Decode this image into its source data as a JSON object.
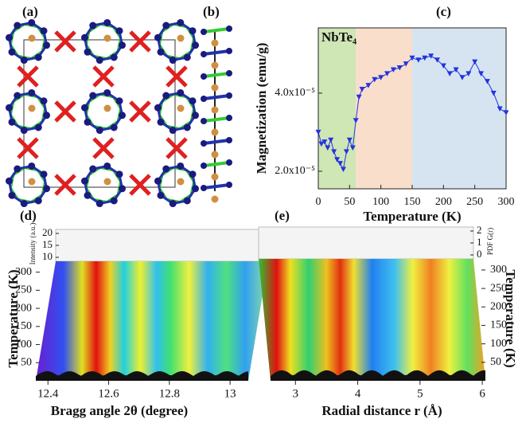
{
  "chart_data": [
    {
      "type": "structure",
      "label": "(a)"
    },
    {
      "type": "structure",
      "label": "(b)"
    },
    {
      "type": "line",
      "label": "(c)",
      "annotation": "NbTe₄",
      "xlabel": "Temperature (K)",
      "ylabel": "Magnetization (emu/g)",
      "xlim": [
        0,
        300
      ],
      "xticks": [
        0,
        50,
        100,
        150,
        200,
        250,
        300
      ],
      "ylim": [
        1.55e-05,
        5.67e-05
      ],
      "yticks": [
        {
          "value": 2e-05,
          "label": "2.0x10⁻⁵"
        },
        {
          "value": 4e-05,
          "label": "4.0x10⁻⁵"
        }
      ],
      "regions": [
        {
          "xlim": [
            0,
            60
          ],
          "color": "#cfe6b5"
        },
        {
          "xlim": [
            60,
            150
          ],
          "color": "#f8decb"
        },
        {
          "xlim": [
            150,
            300
          ],
          "color": "#d6e4f1"
        }
      ],
      "x": [
        0,
        5,
        10,
        15,
        20,
        25,
        30,
        35,
        40,
        45,
        50,
        55,
        60,
        65,
        70,
        80,
        90,
        100,
        110,
        120,
        130,
        140,
        150,
        160,
        170,
        180,
        190,
        200,
        210,
        220,
        230,
        240,
        250,
        260,
        270,
        280,
        290,
        300
      ],
      "series": [
        {
          "color": "#2233dd",
          "values": [
            3e-05,
            2.7e-05,
            2.75e-05,
            2.6e-05,
            2.8e-05,
            2.5e-05,
            2.3e-05,
            2.2e-05,
            2.05e-05,
            2.5e-05,
            2.8e-05,
            2.6e-05,
            3.3e-05,
            3.9e-05,
            4.1e-05,
            4.2e-05,
            4.35e-05,
            4.4e-05,
            4.5e-05,
            4.6e-05,
            4.65e-05,
            4.75e-05,
            4.9e-05,
            4.85e-05,
            4.9e-05,
            4.95e-05,
            4.85e-05,
            4.7e-05,
            4.5e-05,
            4.6e-05,
            4.4e-05,
            4.5e-05,
            4.8e-05,
            4.5e-05,
            4.3e-05,
            4e-05,
            3.6e-05,
            3.5e-05
          ]
        }
      ]
    },
    {
      "type": "surface3d",
      "label": "(d)",
      "xlabel": "Bragg angle 2θ (degree)",
      "ylabel": "Temperature (K)",
      "zlabel": "Intensity (a.u.)",
      "xlim": [
        12.36,
        13.06
      ],
      "xticks": [
        12.4,
        12.6,
        12.8,
        13.0
      ],
      "ylim": [
        0,
        330
      ],
      "yticks": [
        50,
        100,
        150,
        200,
        250,
        300
      ],
      "zlim": [
        9,
        21
      ],
      "zticks": [
        10,
        15,
        20
      ]
    },
    {
      "type": "surface3d",
      "label": "(e)",
      "xlabel": "Radial distance r (Å)",
      "ylabel": "Temperature (K)",
      "zlabel": "PDF G(r)",
      "xlim": [
        2.6,
        6.05
      ],
      "xticks": [
        3,
        4,
        5,
        6
      ],
      "ylim": [
        0,
        330
      ],
      "yticks": [
        50,
        100,
        150,
        200,
        250,
        300
      ],
      "zlim": [
        -0.2,
        2.2
      ],
      "zticks": [
        0,
        1,
        2
      ]
    }
  ]
}
